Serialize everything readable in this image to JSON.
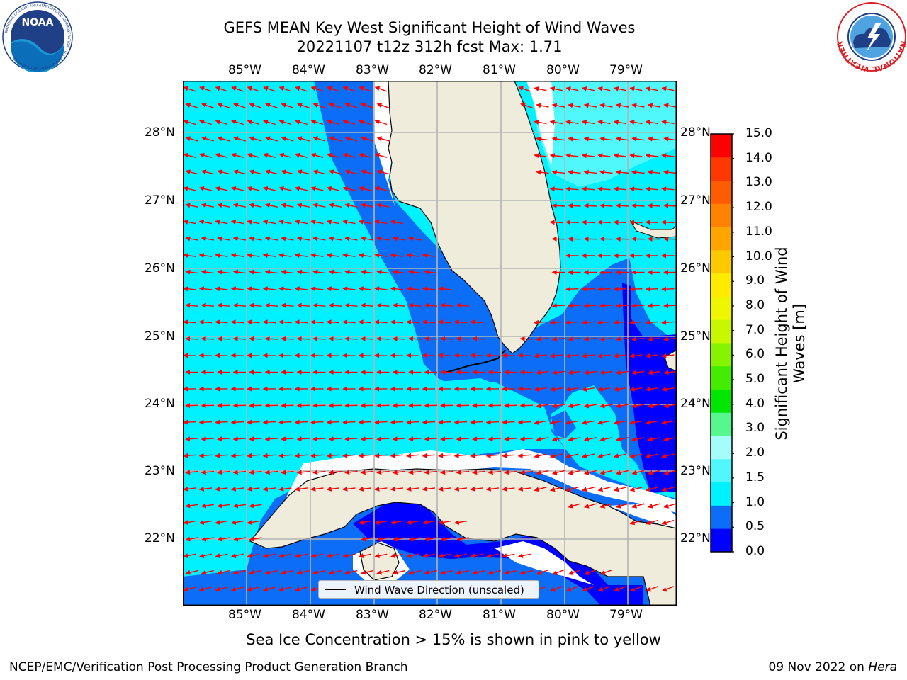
{
  "title": {
    "line1": "GEFS MEAN Key West Significant Height of Wind Waves",
    "line2": "20221107 t12z 312h fcst   Max: 1.71"
  },
  "logos": {
    "noaa_text": "NOAA",
    "noaa_ring_text": "NATIONAL OCEANIC AND ATMOSPHERIC ADMINISTRATION · U.S. DEPARTMENT OF COMMERCE",
    "nws_ring_text": "NATIONAL WEATHER SERVICE"
  },
  "map": {
    "lon_labels": [
      "85°W",
      "84°W",
      "83°W",
      "82°W",
      "81°W",
      "80°W",
      "79°W"
    ],
    "lat_labels": [
      "28°N",
      "27°N",
      "26°N",
      "25°N",
      "24°N",
      "23°N",
      "22°N"
    ],
    "lon_range": [
      -86.0,
      -78.3
    ],
    "lat_range": [
      21.1,
      28.8
    ],
    "grid": true,
    "colors": {
      "land": "#efecdc",
      "ice_free_gap": "#ffffff",
      "coast": "#000000",
      "arrow": "#ff0000",
      "grid": "#b4b4b4"
    }
  },
  "legend": {
    "label": "Wind Wave Direction (unscaled)"
  },
  "colorbar": {
    "label_line1": "Significant Height of Wind",
    "label_line2": "Waves [m]",
    "ticks": [
      "15.0",
      "14.0",
      "13.0",
      "12.0",
      "11.0",
      "10.0",
      "9.0",
      "8.0",
      "7.0",
      "6.0",
      "5.0",
      "4.0",
      "3.0",
      "2.0",
      "1.5",
      "1.0",
      "0.5",
      "0.0"
    ],
    "colors": [
      "#0000ff",
      "#0c6ef6",
      "#00f1ff",
      "#50f8fc",
      "#a4fdf8",
      "#56f78d",
      "#00e600",
      "#43ed00",
      "#86f300",
      "#c8f800",
      "#eef700",
      "#ffea00",
      "#ffc900",
      "#ffa500",
      "#ff8200",
      "#ff5b00",
      "#ff3800",
      "#ff0000"
    ]
  },
  "chart_data": {
    "type": "heatmap",
    "title": "GEFS MEAN Key West Significant Height of Wind Waves",
    "subtitle": "20221107 t12z 312h fcst   Max: 1.71",
    "variable_label": "Significant Height of Wind Waves [m]",
    "max": 1.71,
    "levels": [
      0.0,
      0.5,
      1.0,
      1.5,
      2.0,
      3.0,
      4.0,
      5.0,
      6.0,
      7.0,
      8.0,
      9.0,
      10.0,
      11.0,
      12.0,
      13.0,
      14.0,
      15.0
    ],
    "x_ticks": [
      "85°W",
      "84°W",
      "83°W",
      "82°W",
      "81°W",
      "80°W",
      "79°W"
    ],
    "y_ticks": [
      "28°N",
      "27°N",
      "26°N",
      "25°N",
      "24°N",
      "23°N",
      "22°N"
    ]
  },
  "notes": {
    "ice": "Sea Ice Concentration > 15% is shown in pink to yellow"
  },
  "footer": {
    "left": "NCEP/EMC/Verification Post Processing Product Generation Branch",
    "right_date": "09 Nov 2022 on ",
    "right_host": "Hera"
  }
}
